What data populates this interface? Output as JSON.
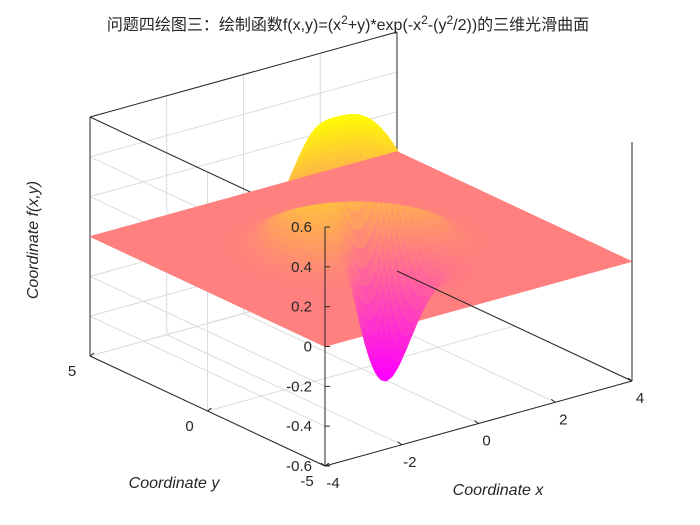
{
  "chart_data": {
    "type": "surface",
    "title_prefix": "问题四绘图三：绘制函数f(x,y)=(x",
    "title_parts": [
      "问题四绘图三：绘制函数f(x,y)=(x",
      "2",
      "+y)*exp(-x",
      "2",
      "-(y",
      "2",
      "/2))的三维光滑曲面"
    ],
    "function": "f(x,y)=(x^2+y)*exp(-x^2-(y^2/2))",
    "xlabel": "Coordinate x",
    "ylabel": "Coordinate y",
    "zlabel": "Coordinate f(x,y)",
    "xlim": [
      -4,
      4
    ],
    "ylim": [
      -5,
      5
    ],
    "zlim": [
      -0.6,
      0.6
    ],
    "xticks": [
      -4,
      -2,
      0,
      2,
      4
    ],
    "yticks": [
      -5,
      0,
      5
    ],
    "zticks": [
      -0.6,
      -0.4,
      -0.2,
      0,
      0.2,
      0.4,
      0.6
    ],
    "colormap": "spring",
    "colormap_low": "#ff00ff",
    "colormap_high": "#ffff00",
    "grid": true,
    "legend": "none"
  }
}
